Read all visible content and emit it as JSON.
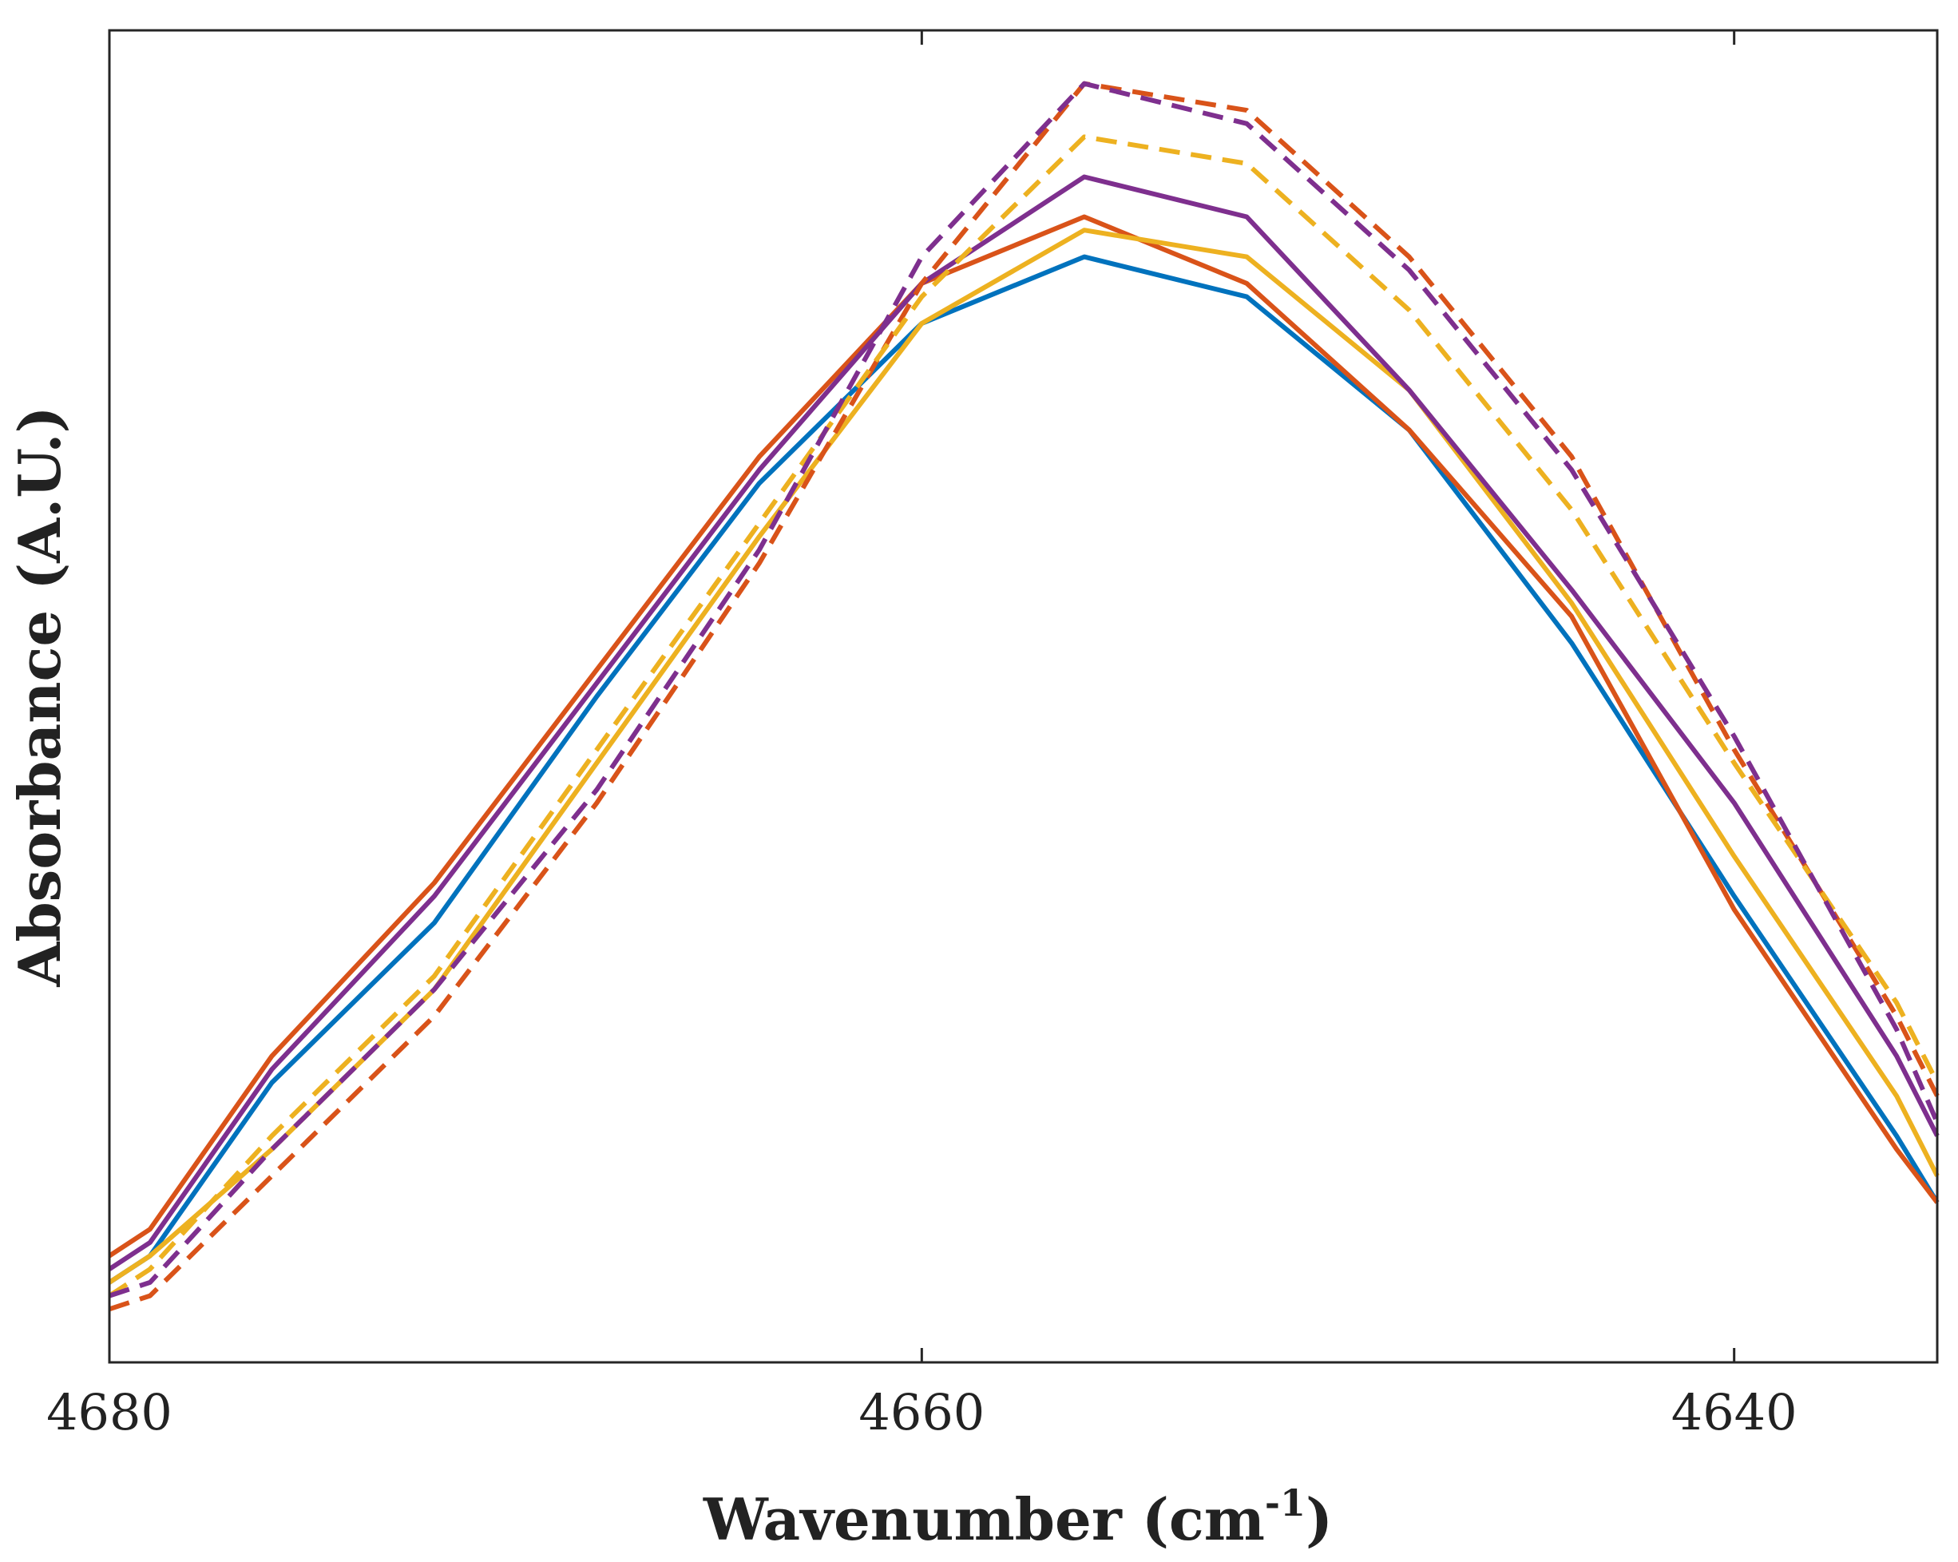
{
  "chart_data": {
    "type": "line",
    "title": "",
    "xlabel": "Wavenumber (cm",
    "xlabel_sup": "-1",
    "xlabel_suffix": ")",
    "ylabel": "Absorbance (A.U.)",
    "xlim": [
      4680,
      4635
    ],
    "ylim": [
      0,
      1
    ],
    "x_reversed": true,
    "x_ticks": [
      4680,
      4660,
      4640
    ],
    "x_tick_labels": [
      "4680",
      "4660",
      "4640"
    ],
    "y_ticks": [],
    "grid": false,
    "legend": "none",
    "x": [
      4680,
      4679,
      4676,
      4672,
      4668,
      4664,
      4660,
      4656,
      4652,
      4648,
      4644,
      4640,
      4636,
      4635
    ],
    "series": [
      {
        "name": "solid-blue",
        "color": "#0072BD",
        "dash": "solid",
        "values": [
          0.06,
          0.08,
          0.21,
          0.33,
          0.5,
          0.66,
          0.78,
          0.83,
          0.8,
          0.7,
          0.54,
          0.35,
          0.17,
          0.12
        ]
      },
      {
        "name": "solid-orange",
        "color": "#D95319",
        "dash": "solid",
        "values": [
          0.08,
          0.1,
          0.23,
          0.36,
          0.52,
          0.68,
          0.81,
          0.86,
          0.81,
          0.7,
          0.56,
          0.34,
          0.16,
          0.12
        ]
      },
      {
        "name": "solid-yellow",
        "color": "#EDB120",
        "dash": "solid",
        "values": [
          0.06,
          0.08,
          0.16,
          0.28,
          0.45,
          0.62,
          0.78,
          0.85,
          0.83,
          0.73,
          0.57,
          0.38,
          0.2,
          0.14
        ]
      },
      {
        "name": "solid-purple",
        "color": "#7E2F8E",
        "dash": "solid",
        "values": [
          0.07,
          0.09,
          0.22,
          0.35,
          0.51,
          0.67,
          0.81,
          0.89,
          0.86,
          0.73,
          0.58,
          0.42,
          0.23,
          0.17
        ]
      },
      {
        "name": "dashed-orange",
        "color": "#D95319",
        "dash": "dashed",
        "values": [
          0.04,
          0.05,
          0.14,
          0.26,
          0.42,
          0.6,
          0.81,
          0.96,
          0.94,
          0.83,
          0.68,
          0.46,
          0.26,
          0.2
        ]
      },
      {
        "name": "dashed-yellow",
        "color": "#EDB120",
        "dash": "dashed",
        "values": [
          0.05,
          0.07,
          0.17,
          0.29,
          0.46,
          0.63,
          0.8,
          0.92,
          0.9,
          0.79,
          0.64,
          0.45,
          0.27,
          0.21
        ]
      },
      {
        "name": "dashed-purple",
        "color": "#7E2F8E",
        "dash": "dashed",
        "values": [
          0.05,
          0.06,
          0.16,
          0.28,
          0.43,
          0.61,
          0.83,
          0.96,
          0.93,
          0.82,
          0.67,
          0.47,
          0.25,
          0.18
        ]
      }
    ]
  }
}
